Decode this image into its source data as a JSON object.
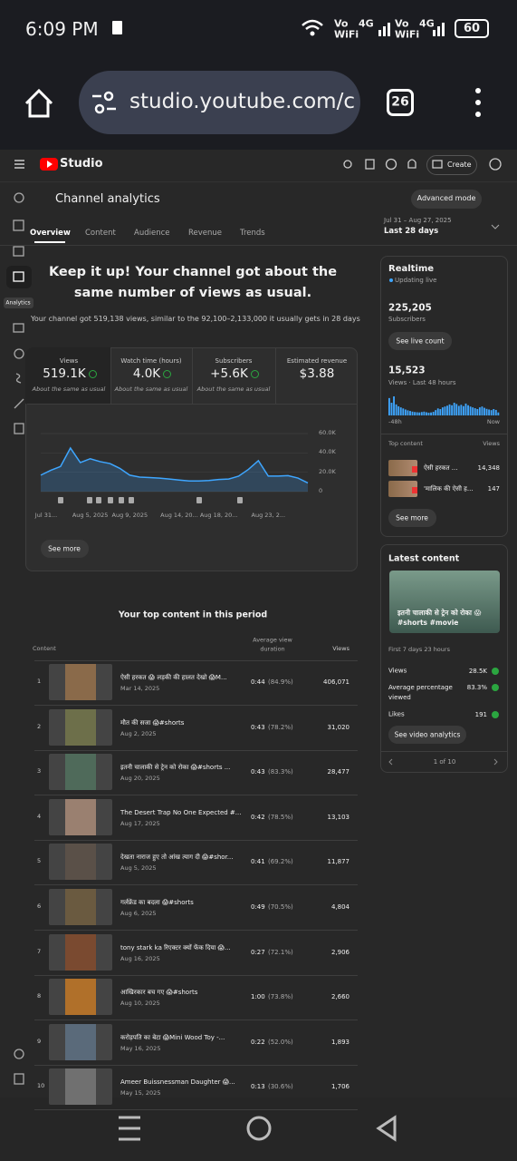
{
  "status_bar": {
    "time": "6:09 PM",
    "indicators": [
      {
        "top": "Vo",
        "bottom": "WiFi",
        "net": "4G"
      },
      {
        "top": "Vo",
        "bottom": "WiFi",
        "net": "4G"
      }
    ],
    "battery": "60"
  },
  "browser": {
    "url": "studio.youtube.com/c",
    "tabs": "26"
  },
  "header": {
    "brand": "Studio",
    "create": "Create"
  },
  "sidebar": {
    "active_label": "Analytics"
  },
  "page": {
    "title": "Channel analytics",
    "advanced": "Advanced mode",
    "tabs": [
      "Overview",
      "Content",
      "Audience",
      "Revenue",
      "Trends"
    ],
    "date_range": "Jul 31 – Aug 27, 2025",
    "period": "Last 28 days",
    "headline": "Keep it up! Your channel got about the same number of views as usual.",
    "summary": "Your channel got 519,138 views, similar to the 92,100–2,133,000 it usually gets in 28 days",
    "see_more": "See more"
  },
  "metrics": [
    {
      "label": "Views",
      "value": "519.1K",
      "note": "About the same as usual"
    },
    {
      "label": "Watch time (hours)",
      "value": "4.0K",
      "note": "About the same as usual"
    },
    {
      "label": "Subscribers",
      "value": "+5.6K",
      "note": "About the same as usual"
    },
    {
      "label": "Estimated revenue",
      "value": "$3.88"
    }
  ],
  "overview_chart": {
    "type": "line",
    "color": "#3ea6ff",
    "categories": [
      "Jul 31...",
      null,
      null,
      null,
      null,
      "Aug 5, 2025",
      null,
      null,
      null,
      "Aug 9, 2025",
      null,
      null,
      null,
      null,
      "Aug 14, 20...",
      null,
      null,
      null,
      "Aug 18, 20...",
      null,
      null,
      null,
      null,
      "Aug 23, 2...",
      null,
      null,
      null,
      null
    ],
    "values": [
      17000,
      22000,
      26000,
      45000,
      30000,
      34000,
      31000,
      29000,
      24000,
      17000,
      15000,
      14500,
      14000,
      13000,
      12000,
      11000,
      11000,
      11500,
      12500,
      13000,
      16000,
      23000,
      32000,
      16000,
      16000,
      16500,
      14000,
      9000
    ],
    "ylim": [
      0,
      60000
    ],
    "yticks": [
      {
        "value": 60000,
        "label": "60.0K"
      },
      {
        "value": 40000,
        "label": "40.0K"
      },
      {
        "value": 20000,
        "label": "20.0K"
      },
      0
    ]
  },
  "top_content": {
    "title": "Your top content in this period",
    "columns": [
      "Content",
      "Average view duration",
      "Views"
    ],
    "rows": [
      {
        "rank": "1",
        "title": "ऐसी हरकत 😱 लड़की की हालत देखो 😱M...",
        "date": "Mar 14, 2025",
        "duration": "0:44",
        "percent": "(84.9%)",
        "views": "406,071"
      },
      {
        "rank": "2",
        "title": "मौत की सजा 😱#shorts",
        "date": "Aug 2, 2025",
        "duration": "0:43",
        "percent": "(78.2%)",
        "views": "31,020"
      },
      {
        "rank": "3",
        "title": "इतनी चालाकी से ट्रेन को रोका 😱#shorts ...",
        "date": "Aug 20, 2025",
        "duration": "0:43",
        "percent": "(83.3%)",
        "views": "28,477"
      },
      {
        "rank": "4",
        "title": "The Desert Trap No One Expected #...",
        "date": "Aug 17, 2025",
        "duration": "0:42",
        "percent": "(78.5%)",
        "views": "13,103"
      },
      {
        "rank": "5",
        "title": "देखता नाराज हुए तो आंख त्याग दी 😱#shor...",
        "date": "Aug 5, 2025",
        "duration": "0:41",
        "percent": "(69.2%)",
        "views": "11,877"
      },
      {
        "rank": "6",
        "title": "गर्लफ्रेंड का बदला 😱#shorts",
        "date": "Aug 6, 2025",
        "duration": "0:49",
        "percent": "(70.5%)",
        "views": "4,804"
      },
      {
        "rank": "7",
        "title": "tony stark ka रिएक्टर क्यों फेंक दिया 😱...",
        "date": "Aug 16, 2025",
        "duration": "0:27",
        "percent": "(72.1%)",
        "views": "2,906"
      },
      {
        "rank": "8",
        "title": "आखिरकार बच गए 😱#shorts",
        "date": "Aug 10, 2025",
        "duration": "1:00",
        "percent": "(73.8%)",
        "views": "2,660"
      },
      {
        "rank": "9",
        "title": "करोड़पति का बेटा 😱Mini Wood Toy -...",
        "date": "May 16, 2025",
        "duration": "0:22",
        "percent": "(52.0%)",
        "views": "1,893"
      },
      {
        "rank": "10",
        "title": "Ameer Buissnessman Daughter 😱...",
        "date": "May 15, 2025",
        "duration": "0:13",
        "percent": "(30.6%)",
        "views": "1,706"
      }
    ]
  },
  "realtime": {
    "title": "Realtime",
    "status": "Updating live",
    "subscribers": "225,205",
    "subscribers_label": "Subscribers",
    "live_button": "See live count",
    "views": "15,523",
    "views_label": "Views · Last 48 hours",
    "chart": {
      "type": "bar",
      "color": "#3ea6ff",
      "values": [
        820,
        600,
        900,
        520,
        430,
        380,
        330,
        280,
        240,
        210,
        180,
        160,
        150,
        140,
        160,
        180,
        150,
        130,
        140,
        170,
        250,
        330,
        300,
        380,
        420,
        460,
        520,
        480,
        600,
        540,
        450,
        500,
        440,
        560,
        480,
        420,
        380,
        340,
        300,
        380,
        420,
        360,
        310,
        280,
        250,
        300,
        260,
        140
      ],
      "ylim": [
        0,
        900
      ]
    },
    "axis_start": "-48h",
    "axis_end": "Now",
    "top_content_label": "Top content",
    "views_col": "Views",
    "items": [
      {
        "title": "ऐसी हरकत ...",
        "views": "14,348"
      },
      {
        "title": "'मालिक की ऐसी ह...",
        "views": "147"
      }
    ],
    "see_more": "See more"
  },
  "latest": {
    "title": "Latest content",
    "caption": "इतनी चालाकी से ट्रेन को रोका 😱 #shorts #movie",
    "period": "First 7 days 23 hours",
    "stats": [
      {
        "label": "Views",
        "value": "28.5K"
      },
      {
        "label": "Average percentage viewed",
        "value": "83.3%"
      },
      {
        "label": "Likes",
        "value": "191"
      }
    ],
    "button": "See video analytics",
    "pager": "1 of 10"
  }
}
